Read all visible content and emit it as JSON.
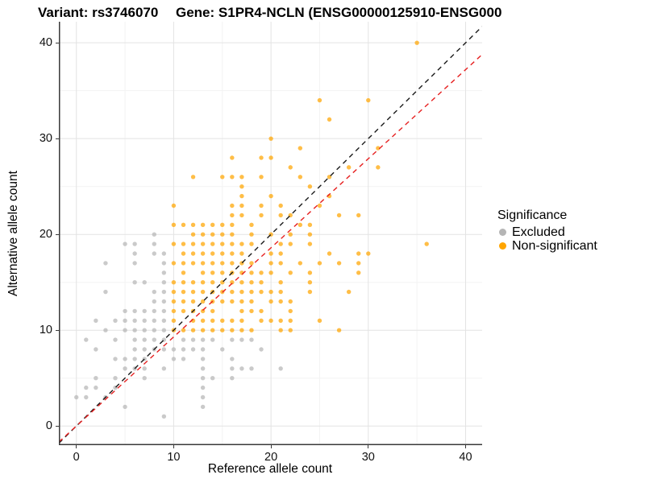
{
  "chart_data": {
    "type": "scatter",
    "title_left": "Variant: rs3746070",
    "title_right": "Gene: S1PR4-NCLN (ENSG00000125910-ENSG000",
    "xlabel": "Reference allele count",
    "ylabel": "Alternative allele count",
    "xlim": [
      -1.8,
      41.7
    ],
    "ylim": [
      -2.0,
      42.2
    ],
    "xticks": [
      0,
      10,
      20,
      30,
      40
    ],
    "yticks": [
      0,
      10,
      20,
      30,
      40
    ],
    "minor_xticks": [
      5,
      15,
      25,
      35
    ],
    "minor_yticks": [
      5,
      15,
      25,
      35
    ],
    "grid": true,
    "legend_position": "right",
    "colors": {
      "grid_major": "#e3e3e3",
      "grid_minor": "#f3f3f3",
      "axis_line": "#3a3a3a",
      "excluded": "#b5b5b5",
      "non_significant": "#ffa500",
      "identity_line": "#1a1a1a",
      "ratio_line": "#e62020"
    },
    "legend": {
      "title": "Significance",
      "items": [
        {
          "label": "Excluded",
          "color": "#b5b5b5"
        },
        {
          "label": "Non-significant",
          "color": "#ffa500"
        }
      ]
    },
    "lines": [
      {
        "name": "identity",
        "slope": 1.0,
        "intercept": 0,
        "style": "dashed",
        "color": "#1a1a1a"
      },
      {
        "name": "fitted-ratio",
        "slope": 0.93,
        "intercept": 0,
        "style": "dashed",
        "color": "#e62020"
      }
    ],
    "series": [
      {
        "name": "Excluded",
        "color": "#b5b5b5",
        "points": [
          [
            9,
            1
          ],
          [
            5,
            2
          ],
          [
            13,
            2
          ],
          [
            0,
            3
          ],
          [
            1,
            3
          ],
          [
            3,
            3
          ],
          [
            13,
            3
          ],
          [
            1,
            4
          ],
          [
            2,
            4
          ],
          [
            4,
            4
          ],
          [
            13,
            4
          ],
          [
            2,
            5
          ],
          [
            4,
            5
          ],
          [
            7,
            5
          ],
          [
            13,
            5
          ],
          [
            14,
            5
          ],
          [
            16,
            5
          ],
          [
            5,
            6
          ],
          [
            6,
            6
          ],
          [
            7,
            6
          ],
          [
            9,
            6
          ],
          [
            13,
            6
          ],
          [
            16,
            6
          ],
          [
            17,
            6
          ],
          [
            18,
            6
          ],
          [
            21,
            6
          ],
          [
            4,
            7
          ],
          [
            5,
            7
          ],
          [
            6,
            7
          ],
          [
            7,
            7
          ],
          [
            10,
            7
          ],
          [
            11,
            7
          ],
          [
            13,
            7
          ],
          [
            16,
            7
          ],
          [
            2,
            8
          ],
          [
            6,
            8
          ],
          [
            7,
            8
          ],
          [
            8,
            8
          ],
          [
            9,
            8
          ],
          [
            10,
            8
          ],
          [
            11,
            8
          ],
          [
            12,
            8
          ],
          [
            13,
            8
          ],
          [
            15,
            8
          ],
          [
            19,
            8
          ],
          [
            1,
            9
          ],
          [
            4,
            9
          ],
          [
            6,
            9
          ],
          [
            7,
            9
          ],
          [
            8,
            9
          ],
          [
            9,
            9
          ],
          [
            11,
            9
          ],
          [
            12,
            9
          ],
          [
            13,
            9
          ],
          [
            14,
            9
          ],
          [
            16,
            9
          ],
          [
            17,
            9
          ],
          [
            18,
            9
          ],
          [
            3,
            10
          ],
          [
            5,
            10
          ],
          [
            6,
            10
          ],
          [
            7,
            10
          ],
          [
            8,
            10
          ],
          [
            9,
            10
          ],
          [
            2,
            11
          ],
          [
            4,
            11
          ],
          [
            5,
            11
          ],
          [
            6,
            11
          ],
          [
            7,
            11
          ],
          [
            8,
            11
          ],
          [
            9,
            11
          ],
          [
            5,
            12
          ],
          [
            6,
            12
          ],
          [
            7,
            12
          ],
          [
            8,
            12
          ],
          [
            9,
            12
          ],
          [
            8,
            13
          ],
          [
            9,
            13
          ],
          [
            3,
            14
          ],
          [
            8,
            14
          ],
          [
            9,
            14
          ],
          [
            6,
            15
          ],
          [
            7,
            15
          ],
          [
            9,
            15
          ],
          [
            9,
            16
          ],
          [
            3,
            17
          ],
          [
            6,
            17
          ],
          [
            9,
            17
          ],
          [
            6,
            18
          ],
          [
            8,
            18
          ],
          [
            9,
            18
          ],
          [
            5,
            19
          ],
          [
            6,
            19
          ],
          [
            8,
            19
          ],
          [
            8,
            20
          ]
        ]
      },
      {
        "name": "Non-significant",
        "color": "#ffa500",
        "points": [
          [
            10,
            10
          ],
          [
            11,
            10
          ],
          [
            12,
            10
          ],
          [
            13,
            10
          ],
          [
            14,
            10
          ],
          [
            15,
            10
          ],
          [
            16,
            10
          ],
          [
            17,
            10
          ],
          [
            18,
            10
          ],
          [
            21,
            10
          ],
          [
            22,
            10
          ],
          [
            27,
            10
          ],
          [
            10,
            11
          ],
          [
            12,
            11
          ],
          [
            13,
            11
          ],
          [
            14,
            11
          ],
          [
            15,
            11
          ],
          [
            16,
            11
          ],
          [
            17,
            11
          ],
          [
            19,
            11
          ],
          [
            20,
            11
          ],
          [
            21,
            11
          ],
          [
            22,
            11
          ],
          [
            25,
            11
          ],
          [
            10,
            12
          ],
          [
            11,
            12
          ],
          [
            12,
            12
          ],
          [
            13,
            12
          ],
          [
            14,
            12
          ],
          [
            17,
            12
          ],
          [
            18,
            12
          ],
          [
            19,
            12
          ],
          [
            22,
            12
          ],
          [
            10,
            13
          ],
          [
            11,
            13
          ],
          [
            12,
            13
          ],
          [
            13,
            13
          ],
          [
            14,
            13
          ],
          [
            15,
            13
          ],
          [
            16,
            13
          ],
          [
            17,
            13
          ],
          [
            18,
            13
          ],
          [
            20,
            13
          ],
          [
            21,
            13
          ],
          [
            22,
            13
          ],
          [
            10,
            14
          ],
          [
            11,
            14
          ],
          [
            12,
            14
          ],
          [
            13,
            14
          ],
          [
            14,
            14
          ],
          [
            15,
            14
          ],
          [
            16,
            14
          ],
          [
            17,
            14
          ],
          [
            18,
            14
          ],
          [
            19,
            14
          ],
          [
            20,
            14
          ],
          [
            21,
            14
          ],
          [
            24,
            14
          ],
          [
            28,
            14
          ],
          [
            10,
            15
          ],
          [
            11,
            15
          ],
          [
            12,
            15
          ],
          [
            13,
            15
          ],
          [
            14,
            15
          ],
          [
            15,
            15
          ],
          [
            16,
            15
          ],
          [
            17,
            15
          ],
          [
            18,
            15
          ],
          [
            19,
            15
          ],
          [
            21,
            15
          ],
          [
            24,
            15
          ],
          [
            11,
            16
          ],
          [
            13,
            16
          ],
          [
            14,
            16
          ],
          [
            15,
            16
          ],
          [
            16,
            16
          ],
          [
            17,
            16
          ],
          [
            18,
            16
          ],
          [
            19,
            16
          ],
          [
            20,
            16
          ],
          [
            22,
            16
          ],
          [
            24,
            16
          ],
          [
            29,
            16
          ],
          [
            10,
            17
          ],
          [
            11,
            17
          ],
          [
            12,
            17
          ],
          [
            13,
            17
          ],
          [
            14,
            17
          ],
          [
            15,
            17
          ],
          [
            16,
            17
          ],
          [
            17,
            17
          ],
          [
            18,
            17
          ],
          [
            20,
            17
          ],
          [
            21,
            17
          ],
          [
            23,
            17
          ],
          [
            25,
            17
          ],
          [
            27,
            17
          ],
          [
            29,
            17
          ],
          [
            11,
            18
          ],
          [
            12,
            18
          ],
          [
            13,
            18
          ],
          [
            14,
            18
          ],
          [
            15,
            18
          ],
          [
            16,
            18
          ],
          [
            17,
            18
          ],
          [
            20,
            18
          ],
          [
            21,
            18
          ],
          [
            26,
            18
          ],
          [
            29,
            18
          ],
          [
            30,
            18
          ],
          [
            10,
            19
          ],
          [
            11,
            19
          ],
          [
            12,
            19
          ],
          [
            13,
            19
          ],
          [
            14,
            19
          ],
          [
            15,
            19
          ],
          [
            16,
            19
          ],
          [
            17,
            19
          ],
          [
            18,
            19
          ],
          [
            21,
            19
          ],
          [
            22,
            19
          ],
          [
            24,
            19
          ],
          [
            36,
            19
          ],
          [
            12,
            20
          ],
          [
            13,
            20
          ],
          [
            14,
            20
          ],
          [
            15,
            20
          ],
          [
            16,
            20
          ],
          [
            18,
            20
          ],
          [
            20,
            20
          ],
          [
            22,
            20
          ],
          [
            24,
            20
          ],
          [
            10,
            21
          ],
          [
            11,
            21
          ],
          [
            12,
            21
          ],
          [
            13,
            21
          ],
          [
            14,
            21
          ],
          [
            15,
            21
          ],
          [
            16,
            21
          ],
          [
            18,
            21
          ],
          [
            23,
            21
          ],
          [
            24,
            21
          ],
          [
            16,
            22
          ],
          [
            17,
            22
          ],
          [
            19,
            22
          ],
          [
            21,
            22
          ],
          [
            22,
            22
          ],
          [
            27,
            22
          ],
          [
            29,
            22
          ],
          [
            10,
            23
          ],
          [
            16,
            23
          ],
          [
            17,
            23
          ],
          [
            19,
            23
          ],
          [
            21,
            23
          ],
          [
            25,
            23
          ],
          [
            17,
            24
          ],
          [
            20,
            24
          ],
          [
            26,
            24
          ],
          [
            17,
            25
          ],
          [
            24,
            25
          ],
          [
            12,
            26
          ],
          [
            15,
            26
          ],
          [
            16,
            26
          ],
          [
            17,
            26
          ],
          [
            19,
            26
          ],
          [
            23,
            26
          ],
          [
            26,
            26
          ],
          [
            22,
            27
          ],
          [
            28,
            27
          ],
          [
            31,
            27
          ],
          [
            16,
            28
          ],
          [
            19,
            28
          ],
          [
            20,
            28
          ],
          [
            23,
            29
          ],
          [
            31,
            29
          ],
          [
            20,
            30
          ],
          [
            26,
            32
          ],
          [
            25,
            34
          ],
          [
            30,
            34
          ],
          [
            35,
            40
          ]
        ]
      }
    ]
  }
}
